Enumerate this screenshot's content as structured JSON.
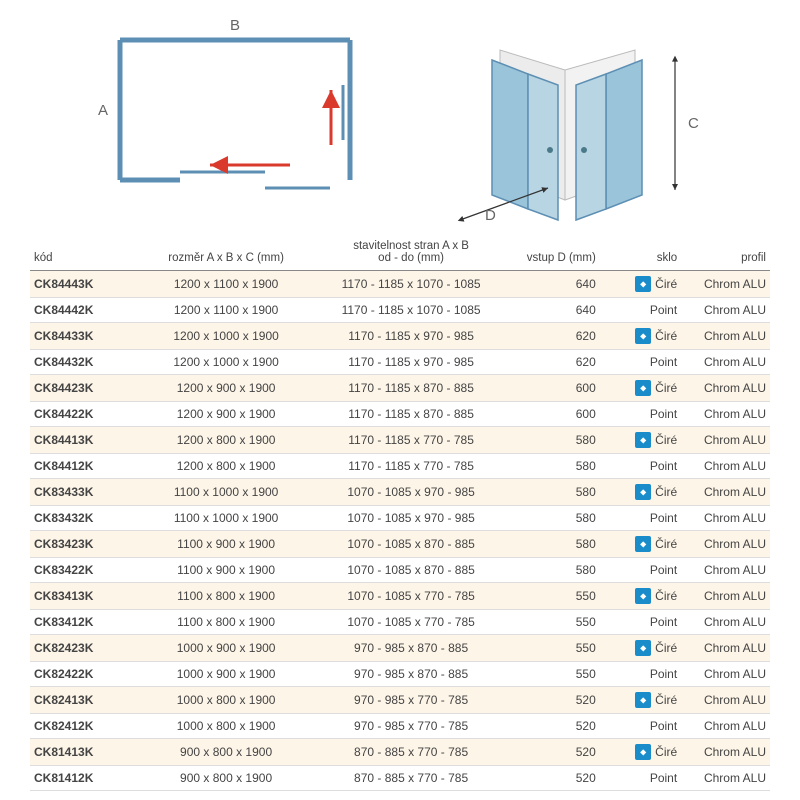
{
  "diagram": {
    "labels": {
      "A": "A",
      "B": "B",
      "C": "C",
      "D": "D"
    },
    "floorplan": {
      "rect_stroke": "#5c8fb3",
      "rect_stroke_width": 4,
      "arrow_color": "#d93a2b",
      "arrow_width": 3
    },
    "iso": {
      "panel_fill": "#9ac4d9",
      "panel_fill_light": "#cde2ec",
      "wall_fill": "#e8e8e8",
      "outline": "#5c8fb3",
      "handle_color": "#4a7a8a",
      "dim_arrow_color": "#333333"
    },
    "label_color": "#666666",
    "label_fontsize": 14
  },
  "table": {
    "headers": {
      "kod": "kód",
      "rozmer": "rozměr A x B x C (mm)",
      "stav": "stavitelnost stran A x B\nod - do (mm)",
      "vstup": "vstup D (mm)",
      "sklo": "sklo",
      "profil": "profil"
    },
    "profil_value": "Chrom ALU",
    "sklo_cire": "Čiré",
    "sklo_point": "Point",
    "rows": [
      {
        "kod": "CK84443K",
        "rozmer": "1200 x 1100 x 1900",
        "stav": "1170 - 1185 x 1070 - 1085",
        "vstup": "640",
        "sklo_icon": true,
        "sklo": "Čiré"
      },
      {
        "kod": "CK84442K",
        "rozmer": "1200 x 1100 x 1900",
        "stav": "1170 - 1185 x 1070 - 1085",
        "vstup": "640",
        "sklo_icon": false,
        "sklo": "Point"
      },
      {
        "kod": "CK84433K",
        "rozmer": "1200 x 1000 x 1900",
        "stav": "1170 - 1185 x 970 - 985",
        "vstup": "620",
        "sklo_icon": true,
        "sklo": "Čiré"
      },
      {
        "kod": "CK84432K",
        "rozmer": "1200 x 1000 x 1900",
        "stav": "1170 - 1185 x 970 - 985",
        "vstup": "620",
        "sklo_icon": false,
        "sklo": "Point"
      },
      {
        "kod": "CK84423K",
        "rozmer": "1200 x 900 x 1900",
        "stav": "1170 - 1185 x 870 - 885",
        "vstup": "600",
        "sklo_icon": true,
        "sklo": "Čiré"
      },
      {
        "kod": "CK84422K",
        "rozmer": "1200 x 900 x 1900",
        "stav": "1170 - 1185 x 870 - 885",
        "vstup": "600",
        "sklo_icon": false,
        "sklo": "Point"
      },
      {
        "kod": "CK84413K",
        "rozmer": "1200 x 800 x 1900",
        "stav": "1170 - 1185 x 770 - 785",
        "vstup": "580",
        "sklo_icon": true,
        "sklo": "Čiré"
      },
      {
        "kod": "CK84412K",
        "rozmer": "1200 x 800 x 1900",
        "stav": "1170 - 1185 x 770 - 785",
        "vstup": "580",
        "sklo_icon": false,
        "sklo": "Point"
      },
      {
        "kod": "CK83433K",
        "rozmer": "1100 x 1000 x 1900",
        "stav": "1070 - 1085 x 970 - 985",
        "vstup": "580",
        "sklo_icon": true,
        "sklo": "Čiré"
      },
      {
        "kod": "CK83432K",
        "rozmer": "1100 x 1000 x 1900",
        "stav": "1070 - 1085 x 970 - 985",
        "vstup": "580",
        "sklo_icon": false,
        "sklo": "Point"
      },
      {
        "kod": "CK83423K",
        "rozmer": "1100 x 900 x 1900",
        "stav": "1070 - 1085 x 870 - 885",
        "vstup": "580",
        "sklo_icon": true,
        "sklo": "Čiré"
      },
      {
        "kod": "CK83422K",
        "rozmer": "1100 x 900 x 1900",
        "stav": "1070 - 1085 x 870 - 885",
        "vstup": "580",
        "sklo_icon": false,
        "sklo": "Point"
      },
      {
        "kod": "CK83413K",
        "rozmer": "1100 x 800 x 1900",
        "stav": "1070 - 1085 x 770 - 785",
        "vstup": "550",
        "sklo_icon": true,
        "sklo": "Čiré"
      },
      {
        "kod": "CK83412K",
        "rozmer": "1100 x 800 x 1900",
        "stav": "1070 - 1085 x 770 - 785",
        "vstup": "550",
        "sklo_icon": false,
        "sklo": "Point"
      },
      {
        "kod": "CK82423K",
        "rozmer": "1000 x 900 x 1900",
        "stav": "970 - 985 x 870 - 885",
        "vstup": "550",
        "sklo_icon": true,
        "sklo": "Čiré"
      },
      {
        "kod": "CK82422K",
        "rozmer": "1000 x 900 x 1900",
        "stav": "970 - 985 x 870 - 885",
        "vstup": "550",
        "sklo_icon": false,
        "sklo": "Point"
      },
      {
        "kod": "CK82413K",
        "rozmer": "1000 x 800 x 1900",
        "stav": "970 - 985 x 770 - 785",
        "vstup": "520",
        "sklo_icon": true,
        "sklo": "Čiré"
      },
      {
        "kod": "CK82412K",
        "rozmer": "1000 x 800 x 1900",
        "stav": "970 - 985 x 770 - 785",
        "vstup": "520",
        "sklo_icon": false,
        "sklo": "Point"
      },
      {
        "kod": "CK81413K",
        "rozmer": "900 x 800 x 1900",
        "stav": "870 - 885 x 770 - 785",
        "vstup": "520",
        "sklo_icon": true,
        "sklo": "Čiré"
      },
      {
        "kod": "CK81412K",
        "rozmer": "900 x 800 x 1900",
        "stav": "870 - 885 x 770 - 785",
        "vstup": "520",
        "sklo_icon": false,
        "sklo": "Point"
      }
    ],
    "col_widths": {
      "kod": "15%",
      "rozmer": "23%",
      "stav": "27%",
      "vstup": "12%",
      "sklo": "11%",
      "profil": "12%"
    }
  },
  "colors": {
    "row_odd_bg": "#fdf5e8",
    "kod_color": "#4a7a8a",
    "border": "#dddddd",
    "header_border": "#888888"
  }
}
